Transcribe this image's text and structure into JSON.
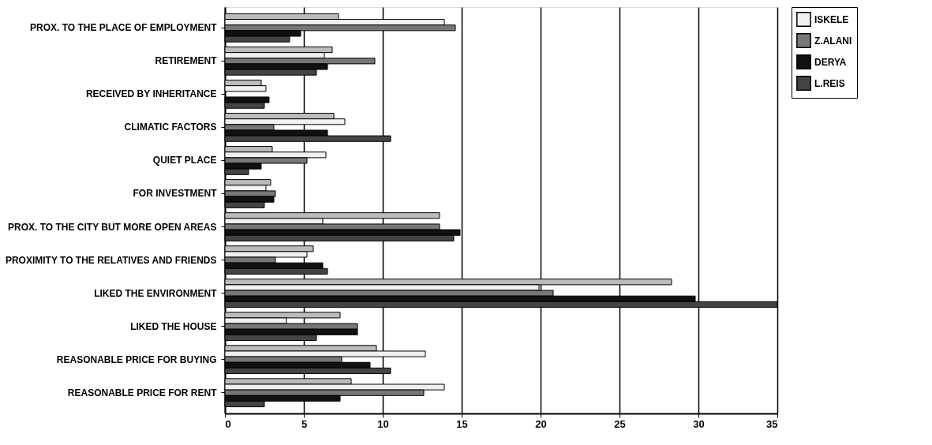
{
  "chart_data": {
    "type": "bar",
    "orientation": "horizontal",
    "categories": [
      "PROX. TO THE PLACE OF EMPLOYMENT",
      "RETIREMENT",
      "RECEIVED BY INHERITANCE",
      "CLIMATIC FACTORS",
      "QUIET PLACE",
      "FOR INVESTMENT",
      "PROX. TO THE CITY BUT MORE OPEN AREAS",
      "PROXIMITY TO THE RELATIVES AND FRIENDS",
      "LIKED THE ENVIRONMENT",
      "LIKED THE HOUSE",
      "REASONABLE PRICE FOR BUYING",
      "REASONABLE PRICE FOR RENT"
    ],
    "series": [
      {
        "color": "#bbbbbb",
        "values": [
          7.2,
          6.8,
          2.3,
          6.9,
          3.0,
          2.9,
          13.6,
          5.6,
          28.3,
          7.3,
          9.6,
          8.0
        ]
      },
      {
        "name": "ISKELE",
        "color": "#f0f0f0",
        "values": [
          13.9,
          6.3,
          2.6,
          7.6,
          6.4,
          2.6,
          6.2,
          5.2,
          19.9,
          3.9,
          12.7,
          13.9
        ]
      },
      {
        "name": "Z.ALANI",
        "color": "#777777",
        "values": [
          14.6,
          9.5,
          null,
          3.1,
          5.2,
          3.2,
          13.6,
          3.2,
          20.8,
          8.4,
          7.4,
          12.6
        ]
      },
      {
        "name": "DERYA",
        "color": "#111111",
        "values": [
          4.8,
          6.5,
          2.8,
          6.5,
          2.3,
          3.1,
          14.9,
          6.2,
          29.8,
          8.4,
          9.2,
          7.3
        ]
      },
      {
        "name": "L.REIS",
        "color": "#444444",
        "values": [
          4.1,
          5.8,
          2.5,
          10.5,
          1.5,
          2.5,
          14.5,
          6.5,
          35,
          5.8,
          10.5,
          2.5
        ]
      }
    ],
    "xlim": [
      0,
      35
    ],
    "xticks": [
      0,
      5,
      10,
      15,
      20,
      25,
      30,
      35
    ],
    "grid": "x",
    "legend": "top right"
  }
}
